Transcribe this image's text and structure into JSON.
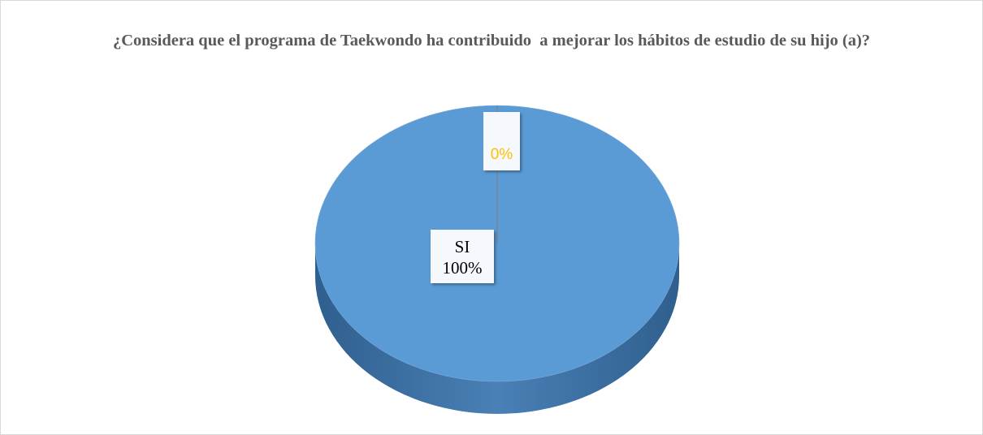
{
  "chart_data": {
    "type": "pie",
    "title": "¿Considera que el programa de Taekwondo ha contribuido  a mejorar los hábitos de estudio de su hijo (a)?",
    "categories": [
      "SI",
      null
    ],
    "values": [
      100,
      0
    ],
    "value_labels": [
      "100%",
      "0%"
    ],
    "colors": [
      "#5b9bd5",
      "#ed7d31"
    ],
    "label_colors": [
      "#000000",
      "#ffc000"
    ]
  }
}
